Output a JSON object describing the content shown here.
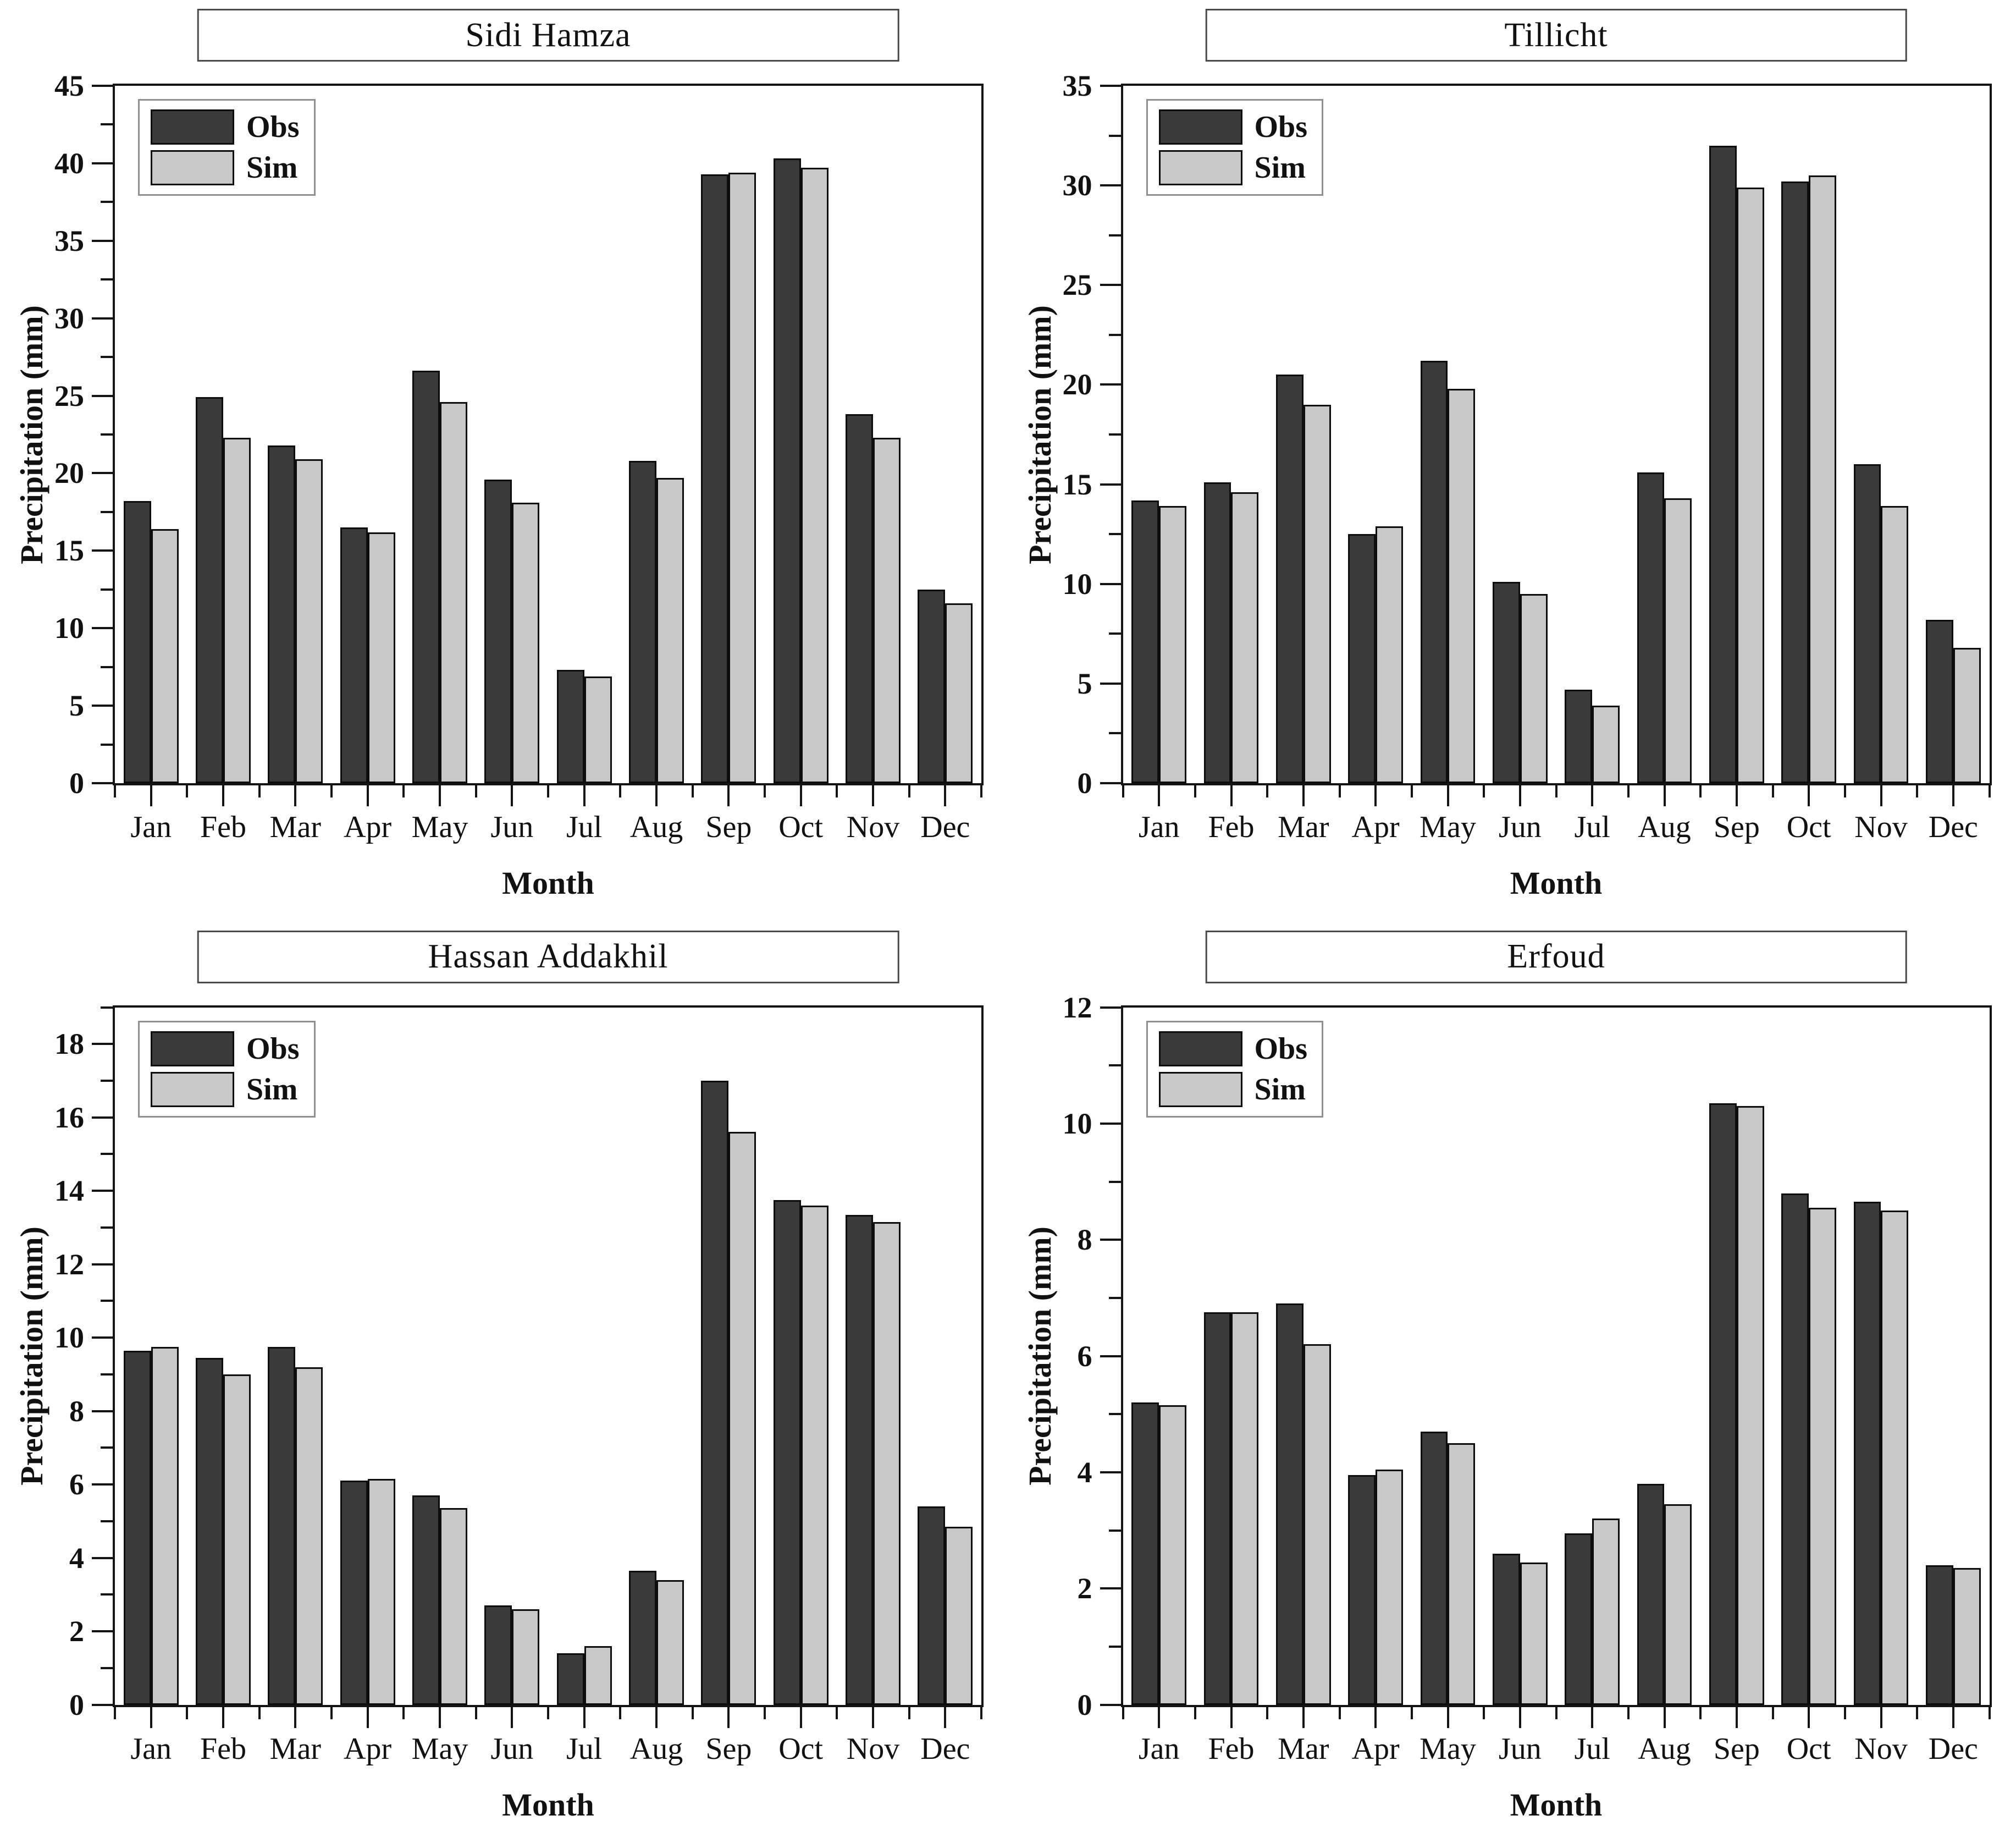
{
  "figure": {
    "ylabel": "Precipitation (mm)",
    "xlabel": "Month",
    "legend_labels": [
      "Obs",
      "Sim"
    ],
    "colors": {
      "obs_fill": "#3a3a3a",
      "sim_fill": "#c8c8c8",
      "axis": "#141414",
      "background": "#ffffff"
    }
  },
  "chart_data": [
    {
      "type": "bar",
      "title": "Sidi Hamza",
      "xlabel": "Month",
      "ylabel": "Precipitation (mm)",
      "categories": [
        "Jan",
        "Feb",
        "Mar",
        "Apr",
        "May",
        "Jun",
        "Jul",
        "Aug",
        "Sep",
        "Oct",
        "Nov",
        "Dec"
      ],
      "series": [
        {
          "name": "Obs",
          "values": [
            18.2,
            24.9,
            21.8,
            16.5,
            26.6,
            19.6,
            7.3,
            20.8,
            39.3,
            40.3,
            23.8,
            12.5
          ]
        },
        {
          "name": "Sim",
          "values": [
            16.4,
            22.3,
            20.9,
            16.2,
            24.6,
            18.1,
            6.9,
            19.7,
            39.4,
            39.7,
            22.3,
            11.6
          ]
        }
      ],
      "ylim": [
        0,
        45
      ],
      "ytick_major": 5,
      "ytick_minor": 2.5,
      "ytick_label_max": 45,
      "grid": false,
      "legend_position": "top-left"
    },
    {
      "type": "bar",
      "title": "Tillicht",
      "xlabel": "Month",
      "ylabel": "Precipitation (mm)",
      "categories": [
        "Jan",
        "Feb",
        "Mar",
        "Apr",
        "May",
        "Jun",
        "Jul",
        "Aug",
        "Sep",
        "Oct",
        "Nov",
        "Dec"
      ],
      "series": [
        {
          "name": "Obs",
          "values": [
            14.2,
            15.1,
            20.5,
            12.5,
            21.2,
            10.1,
            4.7,
            15.6,
            32.0,
            30.2,
            16.0,
            8.2
          ]
        },
        {
          "name": "Sim",
          "values": [
            13.9,
            14.6,
            19.0,
            12.9,
            19.8,
            9.5,
            3.9,
            14.3,
            29.9,
            30.5,
            13.9,
            6.8
          ]
        }
      ],
      "ylim": [
        0,
        35
      ],
      "ytick_major": 5,
      "ytick_minor": 2.5,
      "ytick_label_max": 35,
      "grid": false,
      "legend_position": "top-left"
    },
    {
      "type": "bar",
      "title": "Hassan Addakhil",
      "xlabel": "Month",
      "ylabel": "Precipitation (mm)",
      "categories": [
        "Jan",
        "Feb",
        "Mar",
        "Apr",
        "May",
        "Jun",
        "Jul",
        "Aug",
        "Sep",
        "Oct",
        "Nov",
        "Dec"
      ],
      "series": [
        {
          "name": "Obs",
          "values": [
            9.65,
            9.45,
            9.75,
            6.1,
            5.7,
            2.7,
            1.4,
            3.65,
            17.0,
            13.75,
            13.35,
            5.4
          ]
        },
        {
          "name": "Sim",
          "values": [
            9.75,
            9.0,
            9.2,
            6.15,
            5.35,
            2.6,
            1.6,
            3.4,
            15.6,
            13.6,
            13.15,
            4.85
          ]
        }
      ],
      "ylim": [
        0,
        19
      ],
      "ytick_major": 2,
      "ytick_minor": 1,
      "ytick_label_max": 18,
      "grid": false,
      "legend_position": "top-left"
    },
    {
      "type": "bar",
      "title": "Erfoud",
      "xlabel": "Month",
      "ylabel": "Precipitation (mm)",
      "categories": [
        "Jan",
        "Feb",
        "Mar",
        "Apr",
        "May",
        "Jun",
        "Jul",
        "Aug",
        "Sep",
        "Oct",
        "Nov",
        "Dec"
      ],
      "series": [
        {
          "name": "Obs",
          "values": [
            5.2,
            6.75,
            6.9,
            3.95,
            4.7,
            2.6,
            2.95,
            3.8,
            10.35,
            8.8,
            8.65,
            2.4
          ]
        },
        {
          "name": "Sim",
          "values": [
            5.15,
            6.75,
            6.2,
            4.05,
            4.5,
            2.45,
            3.2,
            3.45,
            10.3,
            8.55,
            8.5,
            2.35
          ]
        }
      ],
      "ylim": [
        0,
        12
      ],
      "ytick_major": 2,
      "ytick_minor": 1,
      "ytick_label_max": 12,
      "grid": false,
      "legend_position": "top-left"
    }
  ]
}
